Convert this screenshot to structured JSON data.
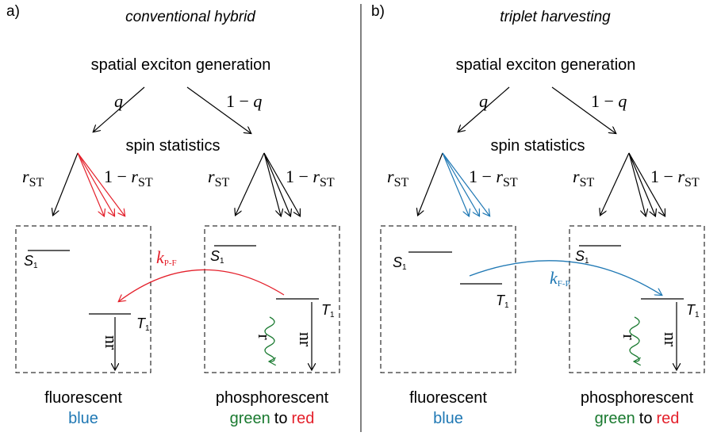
{
  "panels": [
    {
      "label": "a)",
      "title": "conventional hybrid",
      "generation": "spatial exciton generation",
      "q": "q",
      "minus": "1 − ",
      "spin": "spin statistics",
      "r": "r",
      "r_sub": "ST",
      "singlet": "S",
      "triplet": "T",
      "level_sub": "1",
      "rate": "k",
      "rate_sub": "P-F",
      "nonradiative": "nr",
      "radiative": "r",
      "left_caption": "fluorescent",
      "left_color": "blue",
      "right_caption": "phosphorescent",
      "right_colors": [
        "green",
        "to",
        "red"
      ]
    },
    {
      "label": "b)",
      "title": "triplet harvesting",
      "generation": "spatial exciton generation",
      "q": "q",
      "minus": "1 − ",
      "spin": "spin statistics",
      "r": "r",
      "r_sub": "ST",
      "singlet": "S",
      "triplet": "T",
      "level_sub": "1",
      "rate": "k",
      "rate_sub": "F-P",
      "nonradiative": "nr",
      "radiative": "r",
      "left_caption": "fluorescent",
      "left_color": "blue",
      "right_caption": "phosphorescent",
      "right_colors": [
        "green",
        "to",
        "red"
      ]
    }
  ]
}
